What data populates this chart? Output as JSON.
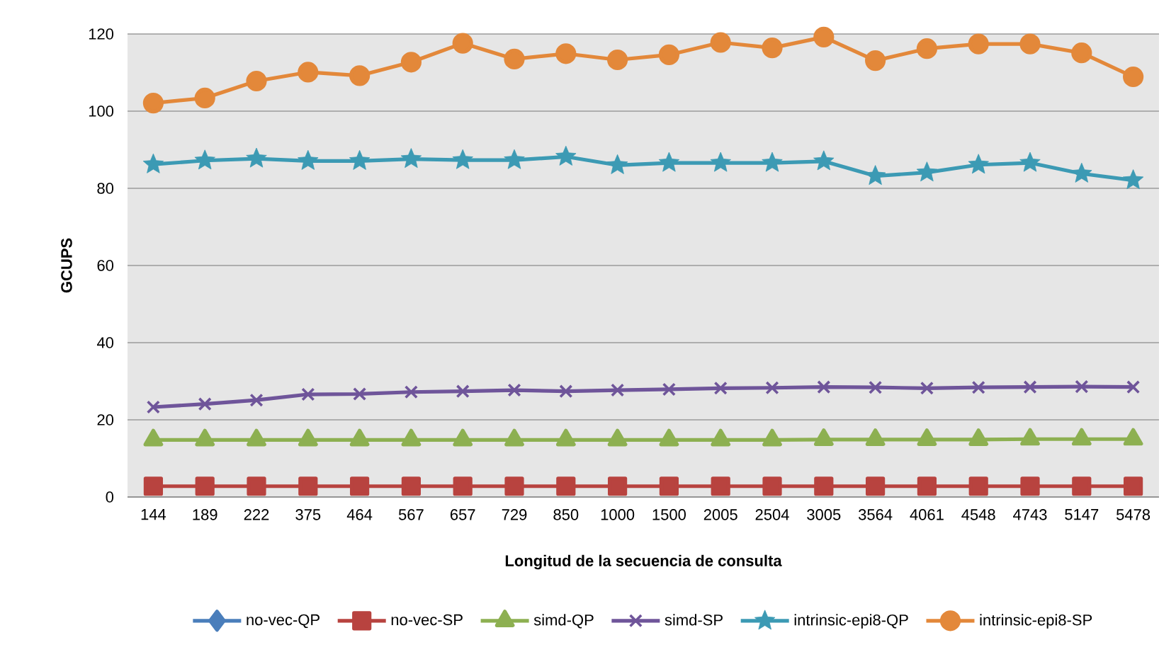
{
  "chart_data": {
    "type": "line",
    "xlabel": "Longitud de la secuencia de consulta",
    "ylabel": "GCUPS",
    "categories": [
      "144",
      "189",
      "222",
      "375",
      "464",
      "567",
      "657",
      "729",
      "850",
      "1000",
      "1500",
      "2005",
      "2504",
      "3005",
      "3564",
      "4061",
      "4548",
      "4743",
      "5147",
      "5478"
    ],
    "ylim": [
      0,
      120
    ],
    "yticks": [
      0,
      20,
      40,
      60,
      80,
      100,
      120
    ],
    "grid": "y",
    "legend": "bottom",
    "series": [
      {
        "name": "no-vec-QP",
        "color": "#4a7ebb",
        "marker": "diamond",
        "values": [
          null,
          null,
          null,
          null,
          null,
          null,
          null,
          null,
          null,
          null,
          null,
          null,
          null,
          null,
          null,
          null,
          null,
          null,
          null,
          null
        ]
      },
      {
        "name": "no-vec-SP",
        "color": "#b8433f",
        "marker": "square",
        "values": [
          2.8,
          2.8,
          2.8,
          2.8,
          2.8,
          2.8,
          2.8,
          2.8,
          2.8,
          2.8,
          2.8,
          2.8,
          2.8,
          2.8,
          2.8,
          2.8,
          2.8,
          2.8,
          2.8,
          2.8
        ]
      },
      {
        "name": "simd-QP",
        "color": "#8db051",
        "marker": "triangle",
        "values": [
          14.8,
          14.8,
          14.8,
          14.8,
          14.8,
          14.8,
          14.8,
          14.8,
          14.8,
          14.8,
          14.8,
          14.8,
          14.8,
          14.9,
          14.9,
          14.9,
          14.9,
          15.0,
          15.0,
          15.0
        ]
      },
      {
        "name": "simd-SP",
        "color": "#6f559a",
        "marker": "cross",
        "values": [
          23.3,
          24.1,
          25.1,
          26.6,
          26.7,
          27.2,
          27.4,
          27.7,
          27.4,
          27.7,
          27.9,
          28.2,
          28.3,
          28.5,
          28.4,
          28.2,
          28.4,
          28.5,
          28.6,
          28.5
        ]
      },
      {
        "name": "intrinsic-epi8-QP",
        "color": "#3c9ab4",
        "marker": "star",
        "values": [
          86.2,
          87.2,
          87.7,
          87.1,
          87.1,
          87.6,
          87.3,
          87.3,
          88.2,
          86.0,
          86.6,
          86.6,
          86.6,
          87.0,
          83.2,
          84.1,
          86.1,
          86.6,
          83.8,
          82.1
        ]
      },
      {
        "name": "intrinsic-epi8-SP",
        "color": "#e3883a",
        "marker": "circle",
        "values": [
          102.1,
          103.4,
          107.8,
          110.1,
          109.2,
          112.7,
          117.6,
          113.5,
          114.9,
          113.3,
          114.6,
          117.8,
          116.4,
          119.2,
          113.1,
          116.2,
          117.4,
          117.4,
          115.1,
          108.9
        ]
      }
    ]
  }
}
